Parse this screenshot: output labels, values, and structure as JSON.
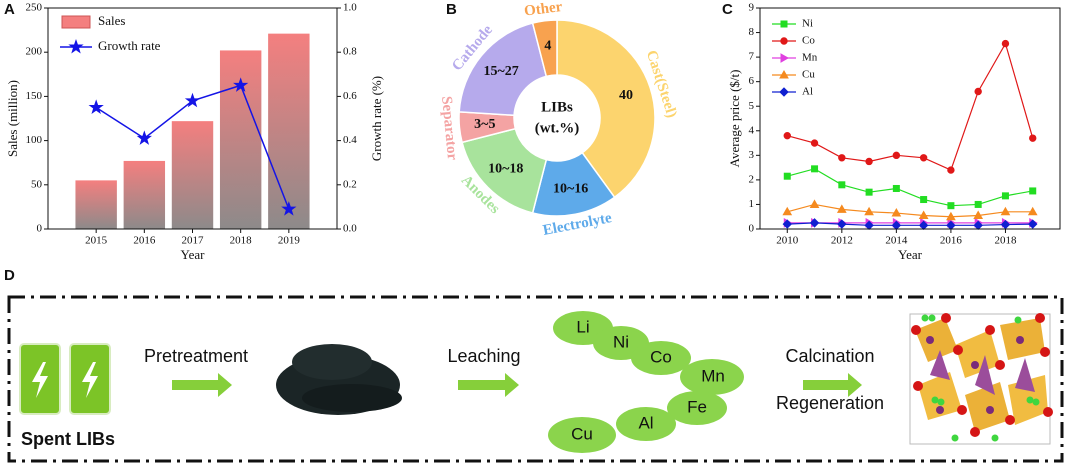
{
  "chart_data": [
    {
      "type": "bar",
      "panel_label": "A",
      "x_label": "Year",
      "y_label": "Sales (million)",
      "y2_label": "Growth rate (%)",
      "categories": [
        "2015",
        "2016",
        "2017",
        "2018",
        "2019"
      ],
      "series": [
        {
          "name": "Sales",
          "type": "bar",
          "color": "#f47f7f",
          "values": [
            55,
            77,
            122,
            202,
            221
          ]
        },
        {
          "name": "Growth rate",
          "type": "line",
          "axis": "y2",
          "marker": "star",
          "color": "#1414e6",
          "values": [
            0.55,
            0.41,
            0.58,
            0.65,
            0.09
          ]
        }
      ],
      "ylim": [
        0,
        250
      ],
      "yticks": [
        0,
        50,
        100,
        150,
        200,
        250
      ],
      "y2lim": [
        0,
        1
      ],
      "y2ticks": [
        {
          "value": 0,
          "label": "0.0"
        },
        0.2,
        0.4,
        0.6,
        0.8,
        {
          "value": 1,
          "label": "1.0"
        }
      ],
      "legend": "upper left"
    },
    {
      "type": "pie",
      "panel_label": "B",
      "donut": true,
      "center_text": [
        "LIBs",
        "(wt.%)"
      ],
      "categories": [
        "Cast(Steel)",
        "Electrolyte",
        "Anodes",
        "Separator",
        "Cathode",
        "Other"
      ],
      "values": [
        40,
        14,
        17,
        5,
        20,
        4
      ],
      "value_labels": [
        "40",
        "10~16",
        "10~18",
        "3~5",
        "15~27",
        "4"
      ],
      "colors": [
        "#fcd46e",
        "#5eaaea",
        "#a8e39c",
        "#f4a3a3",
        "#b6aaec",
        "#f8a24f"
      ]
    },
    {
      "type": "line",
      "panel_label": "C",
      "x_label": "Year",
      "y_label": "Average price ($/t)",
      "x": [
        2010,
        2011,
        2012,
        2013,
        2014,
        2015,
        2016,
        2017,
        2018,
        2019
      ],
      "series": [
        {
          "name": "Ni",
          "marker": "square",
          "color": "#22dd22",
          "values": [
            2.15,
            2.45,
            1.8,
            1.5,
            1.65,
            1.2,
            0.95,
            1.0,
            1.35,
            1.55
          ]
        },
        {
          "name": "Co",
          "marker": "circle",
          "color": "#e01818",
          "values": [
            3.8,
            3.5,
            2.9,
            2.75,
            3.0,
            2.9,
            2.4,
            5.6,
            7.55,
            3.7
          ]
        },
        {
          "name": "Mn",
          "marker": "triangle-right",
          "color": "#e040e0",
          "values": [
            0.25,
            0.25,
            0.25,
            0.25,
            0.25,
            0.25,
            0.25,
            0.25,
            0.25,
            0.25
          ]
        },
        {
          "name": "Cu",
          "marker": "triangle-up",
          "color": "#f58a1f",
          "values": [
            0.7,
            1.0,
            0.8,
            0.7,
            0.65,
            0.55,
            0.5,
            0.55,
            0.7,
            0.7
          ]
        },
        {
          "name": "Al",
          "marker": "diamond",
          "color": "#1020d0",
          "values": [
            0.2,
            0.25,
            0.2,
            0.15,
            0.15,
            0.15,
            0.15,
            0.15,
            0.18,
            0.2
          ]
        }
      ],
      "xlim": [
        2009,
        2020
      ],
      "xticks": [
        2010,
        2012,
        2014,
        2016,
        2018
      ],
      "ylim": [
        0,
        9
      ],
      "yticks": [
        0,
        1,
        2,
        3,
        4,
        5,
        6,
        7,
        8,
        9
      ],
      "legend": "upper left"
    }
  ],
  "diagram": {
    "panel_label": "D",
    "input_label": "Spent LIBs",
    "step_labels": [
      "Pretreatment",
      "Leaching",
      "Calcination",
      "Regeneration"
    ],
    "elements": [
      "Li",
      "Ni",
      "Co",
      "Mn",
      "Fe",
      "Al",
      "Cu"
    ]
  }
}
